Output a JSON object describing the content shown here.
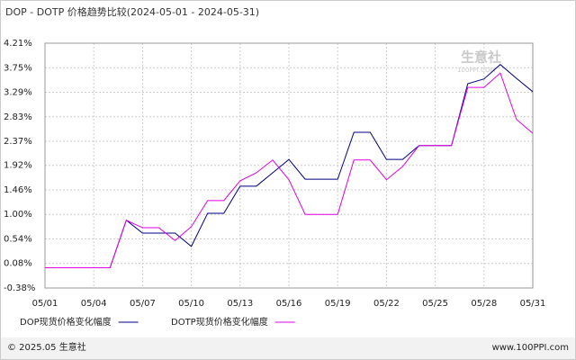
{
  "chart_data": {
    "type": "line",
    "title": "DOP - DOTP 价格趋势比较(2024-05-01 - 2024-05-31)",
    "watermark": "生意社",
    "watermark_sub": "100PPI.COM",
    "footer_left": "© 2025.05 生意社",
    "footer_right": "www.100PPI.com",
    "categories": [
      "05/01",
      null,
      null,
      "05/04",
      null,
      null,
      "05/07",
      null,
      null,
      "05/10",
      null,
      null,
      "05/13",
      null,
      null,
      "05/16",
      null,
      null,
      "05/19",
      null,
      null,
      "05/22",
      null,
      null,
      "05/25",
      null,
      null,
      "05/28",
      null,
      null,
      "05/31"
    ],
    "ylim": [
      -0.38,
      4.21
    ],
    "yticks": [
      {
        "value": -0.38,
        "label": "-0.38%"
      },
      {
        "value": 0.08,
        "label": "0.08%"
      },
      {
        "value": 0.54,
        "label": "0.54%"
      },
      {
        "value": 1.0,
        "label": "1.00%"
      },
      {
        "value": 1.46,
        "label": "1.46%"
      },
      {
        "value": 1.92,
        "label": "1.92%"
      },
      {
        "value": 2.37,
        "label": "2.37%"
      },
      {
        "value": 2.83,
        "label": "2.83%"
      },
      {
        "value": 3.29,
        "label": "3.29%"
      },
      {
        "value": 3.75,
        "label": "3.75%"
      },
      {
        "value": 4.21,
        "label": "4.21%"
      }
    ],
    "grid": true,
    "series": [
      {
        "name": "DOP现货价格变化幅度",
        "color": "#000080",
        "values": [
          0,
          0,
          0,
          0,
          0,
          0.89,
          0.65,
          0.65,
          0.65,
          0.4,
          1.02,
          1.02,
          1.53,
          1.53,
          1.78,
          2.03,
          1.66,
          1.66,
          1.66,
          2.54,
          2.54,
          2.03,
          2.03,
          2.29,
          2.29,
          2.29,
          3.45,
          3.54,
          3.81,
          3.55,
          3.3
        ]
      },
      {
        "name": "DOTP现货价格变化幅度",
        "color": "#e000e0",
        "values": [
          0,
          0,
          0,
          0,
          0,
          0.89,
          0.75,
          0.75,
          0.51,
          0.77,
          1.26,
          1.26,
          1.63,
          1.78,
          2.02,
          1.65,
          1.0,
          1.0,
          1.0,
          2.02,
          2.02,
          1.65,
          1.9,
          2.29,
          2.29,
          2.29,
          3.38,
          3.38,
          3.65,
          2.78,
          2.52
        ]
      }
    ]
  }
}
